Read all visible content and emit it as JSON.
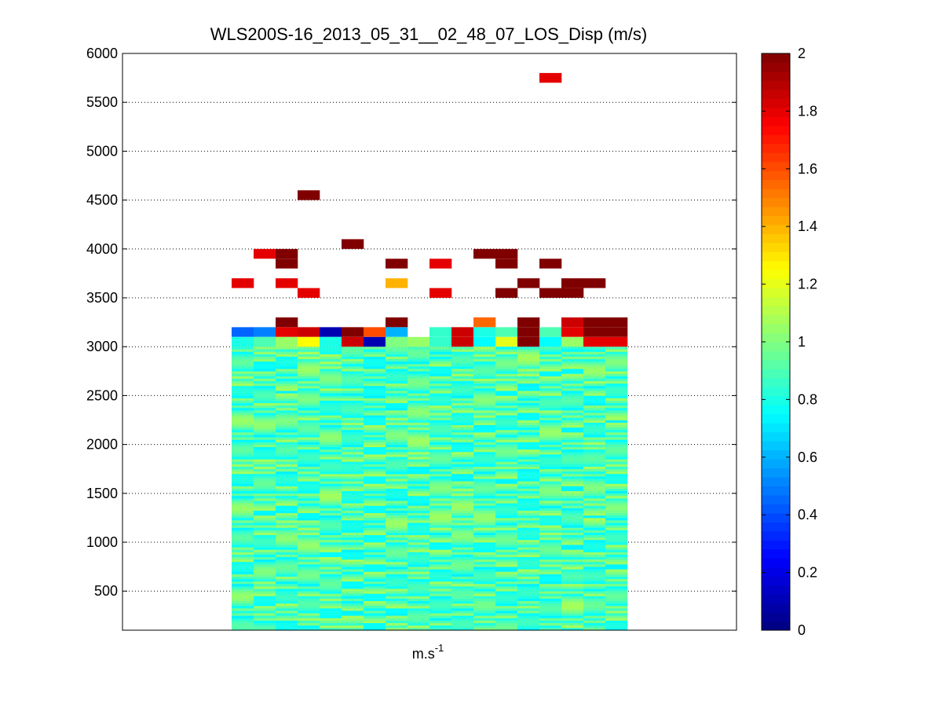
{
  "chart_data": {
    "type": "heatmap",
    "title": "WLS200S-16_2013_05_31__02_48_07_LOS_Disp (m/s)",
    "xlabel": {
      "base": "m.s",
      "superscript": "-1"
    },
    "ylabel": "",
    "ylim": [
      100,
      6000
    ],
    "yticks": [
      500,
      1000,
      1500,
      2000,
      2500,
      3000,
      3500,
      4000,
      4500,
      5000,
      5500,
      6000
    ],
    "grid": true,
    "colorscale": "jet",
    "colorbar": {
      "range": [
        0,
        2
      ],
      "ticks": [
        0,
        0.2,
        0.4,
        0.6,
        0.8,
        1,
        1.2,
        1.4,
        1.6,
        1.8,
        2
      ],
      "tick_labels": [
        "0",
        "0.2",
        "0.4",
        "0.6",
        "0.8",
        "1",
        "1.2",
        "1.4",
        "1.6",
        "1.8",
        "2"
      ]
    },
    "columns": 18,
    "dense_region": {
      "altitude_range": [
        100,
        3000
      ],
      "typical_value": 0.9
    },
    "rows": [
      {
        "altitude": 3150,
        "values": [
          0.45,
          0.5,
          1.8,
          1.85,
          0.1,
          2,
          1.6,
          0.6,
          null,
          0.85,
          1.85,
          0.8,
          0.9,
          2,
          0.9,
          1.8,
          2,
          2
        ]
      },
      {
        "altitude": 3050,
        "values": [
          0.8,
          0.9,
          1.05,
          1.25,
          0.8,
          1.85,
          0.1,
          1.0,
          1.05,
          0.85,
          1.85,
          0.75,
          1.2,
          2,
          0.75,
          1.05,
          1.8,
          1.8
        ]
      },
      {
        "altitude": 3250,
        "values": [
          null,
          null,
          2,
          null,
          null,
          null,
          null,
          2,
          null,
          null,
          null,
          1.55,
          null,
          2,
          null,
          1.85,
          2,
          2
        ]
      },
      {
        "altitude": 3550,
        "values": [
          null,
          null,
          null,
          1.8,
          null,
          null,
          null,
          null,
          null,
          1.8,
          null,
          null,
          2,
          null,
          2,
          2,
          null,
          null
        ]
      },
      {
        "altitude": 3650,
        "values": [
          1.8,
          null,
          1.8,
          null,
          null,
          null,
          null,
          1.4,
          null,
          null,
          null,
          null,
          null,
          2,
          null,
          2,
          2,
          null
        ]
      },
      {
        "altitude": 3850,
        "values": [
          null,
          null,
          2,
          null,
          null,
          null,
          null,
          2,
          null,
          1.8,
          null,
          null,
          2,
          null,
          2,
          null,
          null,
          null
        ]
      },
      {
        "altitude": 3950,
        "values": [
          null,
          1.8,
          2,
          null,
          null,
          null,
          null,
          null,
          null,
          null,
          null,
          2,
          2,
          null,
          null,
          null,
          null,
          null
        ]
      },
      {
        "altitude": 4050,
        "values": [
          null,
          null,
          null,
          null,
          null,
          2,
          null,
          null,
          null,
          null,
          null,
          null,
          null,
          null,
          null,
          null,
          null,
          null
        ]
      },
      {
        "altitude": 4550,
        "values": [
          null,
          null,
          null,
          2,
          null,
          null,
          null,
          null,
          null,
          null,
          null,
          null,
          null,
          null,
          null,
          null,
          null,
          null
        ]
      },
      {
        "altitude": 5750,
        "values": [
          null,
          null,
          null,
          null,
          null,
          null,
          null,
          null,
          null,
          null,
          null,
          null,
          null,
          null,
          1.8,
          null,
          null,
          null
        ]
      }
    ]
  }
}
